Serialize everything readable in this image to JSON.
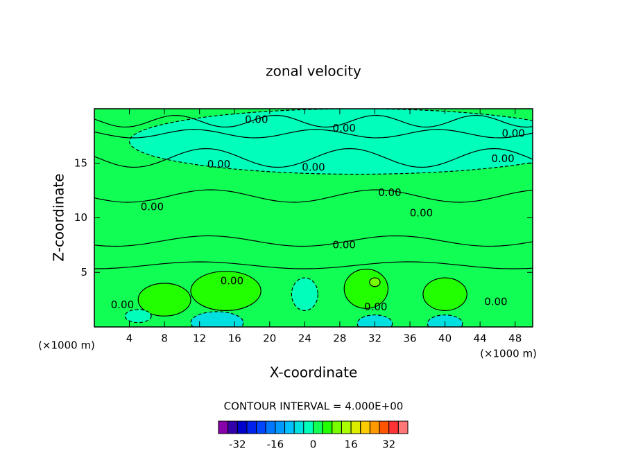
{
  "chart_data": {
    "type": "contour",
    "title": "zonal velocity",
    "x_label": "X-coordinate",
    "y_label": "Z-coordinate",
    "x_unit": "(×1000 m)",
    "y_unit": "(×1000 m)",
    "xlim": [
      0,
      50
    ],
    "xticks": [
      4,
      8,
      12,
      16,
      20,
      24,
      28,
      32,
      36,
      40,
      44,
      48
    ],
    "ylim": [
      0,
      20
    ],
    "yticks": [
      5,
      10,
      15
    ],
    "background_value": 2,
    "regions": [
      {
        "x": 30,
        "z": 17,
        "rx": 26,
        "rz": 3,
        "value": -2
      },
      {
        "x": 8,
        "z": 2.5,
        "rx": 3,
        "rz": 1.5,
        "value": 6
      },
      {
        "x": 15,
        "z": 3.3,
        "rx": 4,
        "rz": 1.8,
        "value": 6
      },
      {
        "x": 31,
        "z": 3.5,
        "rx": 2.5,
        "rz": 1.8,
        "value": 6
      },
      {
        "x": 40,
        "z": 3,
        "rx": 2.5,
        "rz": 1.5,
        "value": 6
      },
      {
        "x": 14,
        "z": 0.4,
        "rx": 3,
        "rz": 1,
        "value": -6
      },
      {
        "x": 24,
        "z": 3,
        "rx": 1.5,
        "rz": 1.5,
        "value": -2
      },
      {
        "x": 32,
        "z": 0.3,
        "rx": 2,
        "rz": 0.8,
        "value": -6
      },
      {
        "x": 40,
        "z": 0.3,
        "rx": 2,
        "rz": 0.8,
        "value": -6
      },
      {
        "x": 5,
        "z": 1,
        "rx": 1.5,
        "rz": 0.6,
        "value": -2
      },
      {
        "x": 32,
        "z": 4.1,
        "rx": 0.6,
        "rz": 0.4,
        "value": 10
      }
    ],
    "contour_labels": [
      {
        "text": "0.00",
        "x": 18.5,
        "z": 19.0
      },
      {
        "text": "0.00",
        "x": 28.5,
        "z": 18.2
      },
      {
        "text": "0.00",
        "x": 47.8,
        "z": 17.7
      },
      {
        "text": "0.00",
        "x": 46.6,
        "z": 15.4
      },
      {
        "text": "0.00",
        "x": 14.2,
        "z": 14.9
      },
      {
        "text": "0.00",
        "x": 25.0,
        "z": 14.6
      },
      {
        "text": "0.00",
        "x": 33.7,
        "z": 12.3
      },
      {
        "text": "0.00",
        "x": 6.6,
        "z": 11.0
      },
      {
        "text": "0.00",
        "x": 37.3,
        "z": 10.4
      },
      {
        "text": "0.00",
        "x": 28.5,
        "z": 7.5
      },
      {
        "text": "0.00",
        "x": 15.7,
        "z": 4.2
      },
      {
        "text": "0.00",
        "x": 3.2,
        "z": 2.0
      },
      {
        "text": "0.00",
        "x": 32.1,
        "z": 1.8
      },
      {
        "text": "0.00",
        "x": 45.8,
        "z": 2.3
      }
    ],
    "contour_interval": "CONTOUR INTERVAL = 4.000E+00",
    "levels": [
      -40,
      -36,
      -32,
      -28,
      -24,
      -20,
      -16,
      -12,
      -8,
      -4,
      0,
      4,
      8,
      12,
      16,
      20,
      24,
      28,
      32,
      36,
      40
    ],
    "colors": [
      "#8800aa",
      "#3300aa",
      "#0000cc",
      "#0022ee",
      "#0044ff",
      "#0077ff",
      "#0099ff",
      "#00c0ff",
      "#00e0e0",
      "#00ffbb",
      "#11ff55",
      "#22ff00",
      "#77ff00",
      "#aaff00",
      "#ddee00",
      "#ffcc00",
      "#ff9900",
      "#ff5500",
      "#ff3333",
      "#ff7777"
    ],
    "colorbar_ticks": [
      -32,
      -16,
      0,
      16,
      32
    ]
  }
}
